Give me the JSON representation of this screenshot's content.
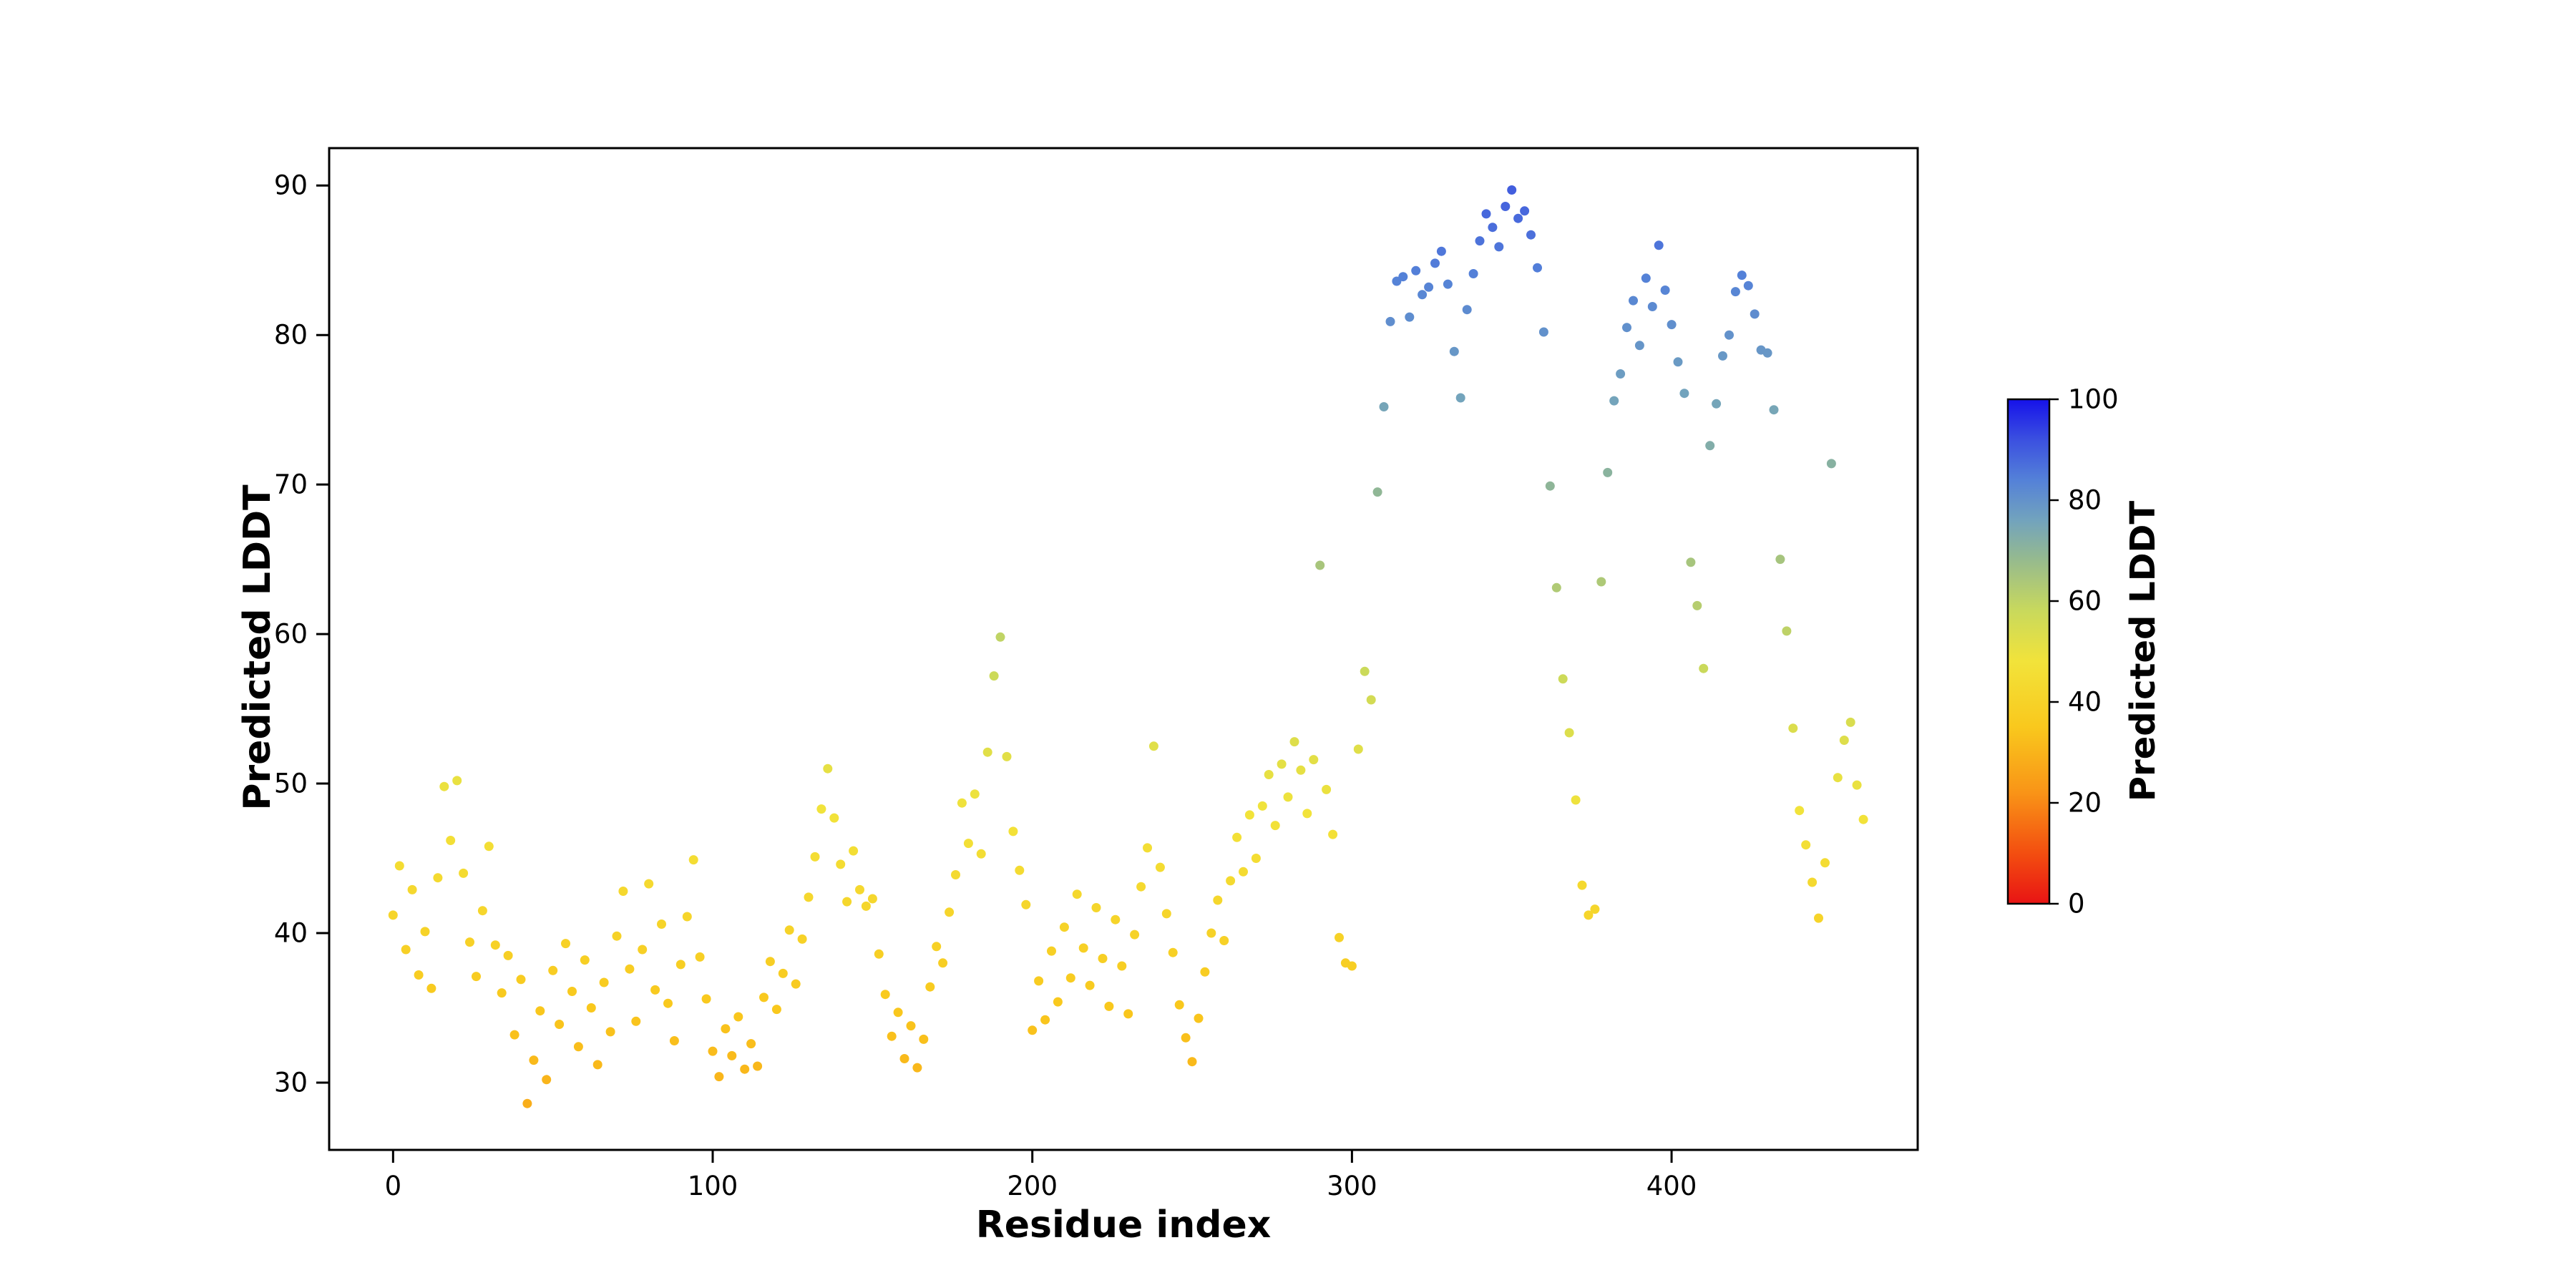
{
  "figure": {
    "background": "#ffffff",
    "axis_color": "#000000"
  },
  "chart_data": {
    "type": "scatter",
    "title": "",
    "xlabel": "Residue index",
    "ylabel": "Predicted LDDT",
    "xlim": [
      -20,
      477
    ],
    "ylim": [
      25.5,
      92.5
    ],
    "xticks": [
      0,
      100,
      200,
      300,
      400
    ],
    "yticks": [
      30,
      40,
      50,
      60,
      70,
      80,
      90
    ],
    "grid": false,
    "legend": false,
    "marker_size_px": 6.5,
    "colorbar": {
      "label": "Predicted LDDT",
      "min": 0,
      "max": 100,
      "ticks": [
        0,
        20,
        40,
        60,
        80,
        100
      ]
    },
    "colormap": [
      {
        "t": 0.0,
        "color": "#e81414"
      },
      {
        "t": 0.1,
        "color": "#f34e10"
      },
      {
        "t": 0.22,
        "color": "#f99417"
      },
      {
        "t": 0.35,
        "color": "#f9c81d"
      },
      {
        "t": 0.48,
        "color": "#f2e33a"
      },
      {
        "t": 0.58,
        "color": "#c9d95c"
      },
      {
        "t": 0.68,
        "color": "#97bb8d"
      },
      {
        "t": 0.76,
        "color": "#72a3bd"
      },
      {
        "t": 0.84,
        "color": "#5481d8"
      },
      {
        "t": 0.92,
        "color": "#3b50e0"
      },
      {
        "t": 1.0,
        "color": "#1612ea"
      }
    ],
    "points": {
      "x": [
        0,
        2,
        4,
        6,
        8,
        10,
        12,
        14,
        16,
        18,
        20,
        22,
        24,
        26,
        28,
        30,
        32,
        34,
        36,
        38,
        40,
        42,
        44,
        46,
        48,
        50,
        52,
        54,
        56,
        58,
        60,
        62,
        64,
        66,
        68,
        70,
        72,
        74,
        76,
        78,
        80,
        82,
        84,
        86,
        88,
        90,
        92,
        94,
        96,
        98,
        100,
        102,
        104,
        106,
        108,
        110,
        112,
        114,
        116,
        118,
        120,
        122,
        124,
        126,
        128,
        130,
        132,
        134,
        136,
        138,
        140,
        142,
        144,
        146,
        148,
        150,
        152,
        154,
        156,
        158,
        160,
        162,
        164,
        166,
        168,
        170,
        172,
        174,
        176,
        178,
        180,
        182,
        184,
        186,
        188,
        190,
        192,
        194,
        196,
        198,
        200,
        202,
        204,
        206,
        208,
        210,
        212,
        214,
        216,
        218,
        220,
        222,
        224,
        226,
        228,
        230,
        232,
        234,
        236,
        238,
        240,
        242,
        244,
        246,
        248,
        250,
        252,
        254,
        256,
        258,
        260,
        262,
        264,
        266,
        268,
        270,
        272,
        274,
        276,
        278,
        280,
        282,
        284,
        286,
        288,
        290,
        292,
        294,
        296,
        298,
        300,
        302,
        304,
        306,
        308,
        310,
        312,
        314,
        316,
        318,
        320,
        322,
        324,
        326,
        328,
        330,
        332,
        334,
        336,
        338,
        340,
        342,
        344,
        346,
        348,
        350,
        352,
        354,
        356,
        358,
        360,
        362,
        364,
        366,
        368,
        370,
        372,
        374,
        376,
        378,
        380,
        382,
        384,
        386,
        388,
        390,
        392,
        394,
        396,
        398,
        400,
        402,
        404,
        406,
        408,
        410,
        412,
        414,
        416,
        418,
        420,
        422,
        424,
        426,
        428,
        430,
        432,
        434,
        436,
        438,
        440,
        442,
        444,
        446,
        448,
        450,
        452,
        454,
        456,
        458,
        460
      ],
      "y": [
        41.2,
        44.5,
        38.9,
        42.9,
        37.2,
        40.1,
        36.3,
        43.7,
        49.8,
        46.2,
        50.2,
        44.0,
        39.4,
        37.1,
        41.5,
        45.8,
        39.2,
        36.0,
        38.5,
        33.2,
        36.9,
        28.6,
        31.5,
        34.8,
        30.2,
        37.5,
        33.9,
        39.3,
        36.1,
        32.4,
        38.2,
        35.0,
        31.2,
        36.7,
        33.4,
        39.8,
        42.8,
        37.6,
        34.1,
        38.9,
        43.3,
        36.2,
        40.6,
        35.3,
        32.8,
        37.9,
        41.1,
        44.9,
        38.4,
        35.6,
        32.1,
        30.4,
        33.6,
        31.8,
        34.4,
        30.9,
        32.6,
        31.1,
        35.7,
        38.1,
        34.9,
        37.3,
        40.2,
        36.6,
        39.6,
        42.4,
        45.1,
        48.3,
        51.0,
        47.7,
        44.6,
        42.1,
        45.5,
        42.9,
        41.8,
        42.3,
        38.6,
        35.9,
        33.1,
        34.7,
        31.6,
        33.8,
        31.0,
        32.9,
        36.4,
        39.1,
        38.0,
        41.4,
        43.9,
        48.7,
        46.0,
        49.3,
        45.3,
        52.1,
        57.2,
        59.8,
        51.8,
        46.8,
        44.2,
        41.9,
        33.5,
        36.8,
        34.2,
        38.8,
        35.4,
        40.4,
        37.0,
        42.6,
        39.0,
        36.5,
        41.7,
        38.3,
        35.1,
        40.9,
        37.8,
        34.6,
        39.9,
        43.1,
        45.7,
        52.5,
        44.4,
        41.3,
        38.7,
        35.2,
        33.0,
        31.4,
        34.3,
        37.4,
        40.0,
        42.2,
        39.5,
        43.5,
        46.4,
        44.1,
        47.9,
        45.0,
        48.5,
        50.6,
        47.2,
        51.3,
        49.1,
        52.8,
        50.9,
        48.0,
        51.6,
        64.6,
        49.6,
        46.6,
        39.7,
        38.0,
        37.8,
        52.3,
        57.5,
        55.6,
        69.5,
        75.2,
        80.9,
        83.6,
        83.9,
        81.2,
        84.3,
        82.7,
        83.2,
        84.8,
        85.6,
        83.4,
        78.9,
        75.8,
        81.7,
        84.1,
        86.3,
        88.1,
        87.2,
        85.9,
        88.6,
        89.7,
        87.8,
        88.3,
        86.7,
        84.5,
        80.2,
        69.9,
        63.1,
        57.0,
        53.4,
        48.9,
        43.2,
        41.2,
        41.6,
        63.5,
        70.8,
        75.6,
        77.4,
        80.5,
        82.3,
        79.3,
        83.8,
        81.9,
        86.0,
        83.0,
        80.7,
        78.2,
        76.1,
        64.8,
        61.9,
        57.7,
        72.6,
        75.4,
        78.6,
        80.0,
        82.9,
        84.0,
        83.3,
        81.4,
        79.0,
        78.8,
        75.0,
        65.0,
        60.2,
        53.7,
        48.2,
        45.9,
        43.4,
        41.0,
        44.7,
        71.4,
        50.4,
        52.9,
        54.1,
        49.9,
        47.6
      ]
    }
  }
}
